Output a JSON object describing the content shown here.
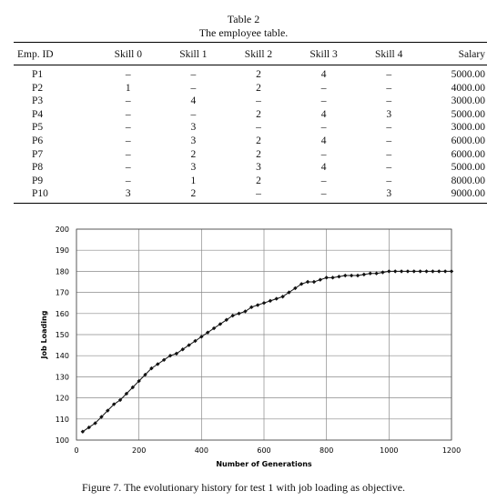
{
  "table": {
    "number": "Table 2",
    "title": "The employee table.",
    "headers": [
      "Emp. ID",
      "Skill 0",
      "Skill 1",
      "Skill 2",
      "Skill 3",
      "Skill 4",
      "Salary"
    ],
    "rows": [
      [
        "P1",
        "–",
        "–",
        "2",
        "4",
        "–",
        "5000.00"
      ],
      [
        "P2",
        "1",
        "–",
        "2",
        "–",
        "–",
        "4000.00"
      ],
      [
        "P3",
        "–",
        "4",
        "–",
        "–",
        "–",
        "3000.00"
      ],
      [
        "P4",
        "–",
        "–",
        "2",
        "4",
        "3",
        "5000.00"
      ],
      [
        "P5",
        "–",
        "3",
        "–",
        "–",
        "–",
        "3000.00"
      ],
      [
        "P6",
        "–",
        "3",
        "2",
        "4",
        "–",
        "6000.00"
      ],
      [
        "P7",
        "–",
        "2",
        "2",
        "–",
        "–",
        "6000.00"
      ],
      [
        "P8",
        "–",
        "3",
        "3",
        "4",
        "–",
        "5000.00"
      ],
      [
        "P9",
        "–",
        "1",
        "2",
        "–",
        "–",
        "8000.00"
      ],
      [
        "P10",
        "3",
        "2",
        "–",
        "–",
        "3",
        "9000.00"
      ]
    ]
  },
  "chart_data": {
    "type": "line",
    "xlabel": "Number of Generations",
    "ylabel": "Job Loading",
    "xlim": [
      0,
      1200
    ],
    "ylim": [
      100,
      200
    ],
    "xticks": [
      0,
      200,
      400,
      600,
      800,
      1000,
      1200
    ],
    "yticks": [
      100,
      110,
      120,
      130,
      140,
      150,
      160,
      170,
      180,
      190,
      200
    ],
    "grid": true,
    "series": [
      {
        "x": [
          20,
          40,
          60,
          80,
          100,
          120,
          140,
          160,
          180,
          200,
          220,
          240,
          260,
          280,
          300,
          320,
          340,
          360,
          380,
          400,
          420,
          440,
          460,
          480,
          500,
          520,
          540,
          560,
          580,
          600,
          620,
          640,
          660,
          680,
          700,
          720,
          740,
          760,
          780,
          800,
          820,
          840,
          860,
          880,
          900,
          920,
          940,
          960,
          980,
          1000,
          1020,
          1040,
          1060,
          1080,
          1100,
          1120,
          1140,
          1160,
          1180,
          1200
        ],
        "y": [
          104,
          106,
          108,
          111,
          114,
          117,
          119,
          122,
          125,
          128,
          131,
          134,
          136,
          138,
          140,
          141,
          143,
          145,
          147,
          149,
          151,
          153,
          155,
          157,
          159,
          160,
          161,
          163,
          164,
          165,
          166,
          167,
          168,
          170,
          172,
          174,
          175,
          175,
          176,
          177,
          177,
          177.5,
          178,
          178,
          178,
          178.5,
          179,
          179,
          179.5,
          180,
          180,
          180,
          180,
          180,
          180,
          180,
          180,
          180,
          180,
          180
        ]
      }
    ]
  },
  "figure_caption": "Figure 7. The evolutionary history for test 1 with job loading as objective."
}
